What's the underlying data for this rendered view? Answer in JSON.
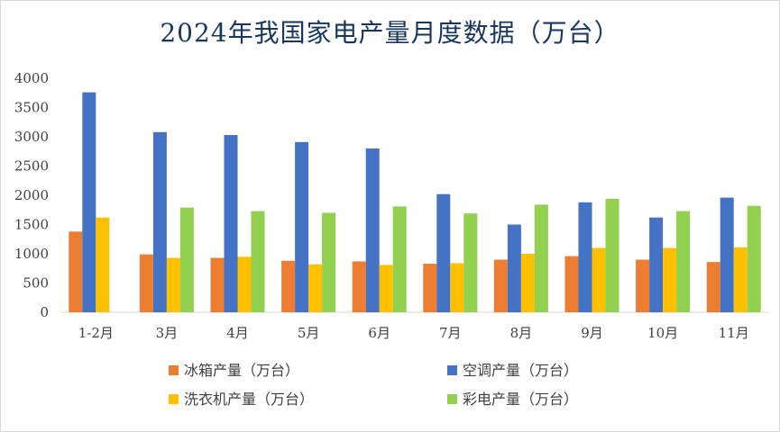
{
  "chart_data": {
    "type": "bar",
    "title": "2024年我国家电产量月度数据（万台）",
    "xlabel": "",
    "ylabel": "",
    "ylim": [
      0,
      4000
    ],
    "yticks": [
      "0",
      "500",
      "1000",
      "1500",
      "2000",
      "2500",
      "3000",
      "3500",
      "4000"
    ],
    "grid": false,
    "legend_position": "bottom",
    "categories": [
      "1-2月",
      "3月",
      "4月",
      "5月",
      "6月",
      "7月",
      "8月",
      "9月",
      "10月",
      "11月"
    ],
    "series": [
      {
        "name": "冰箱产量（万台）",
        "color": "#ED7D31",
        "values": [
          1380,
          990,
          930,
          880,
          870,
          830,
          900,
          960,
          900,
          860
        ]
      },
      {
        "name": "空调产量（万台）",
        "color": "#4472C4",
        "values": [
          3760,
          3080,
          3030,
          2910,
          2800,
          2020,
          1500,
          1880,
          1620,
          1960
        ]
      },
      {
        "name": "洗衣机产量（万台）",
        "color": "#FFC000",
        "values": [
          1620,
          930,
          950,
          820,
          810,
          840,
          1000,
          1100,
          1100,
          1110
        ]
      },
      {
        "name": "彩电产量（万台）",
        "color": "#92D050",
        "values": [
          null,
          1790,
          1730,
          1700,
          1810,
          1690,
          1840,
          1940,
          1730,
          1820
        ]
      }
    ]
  }
}
